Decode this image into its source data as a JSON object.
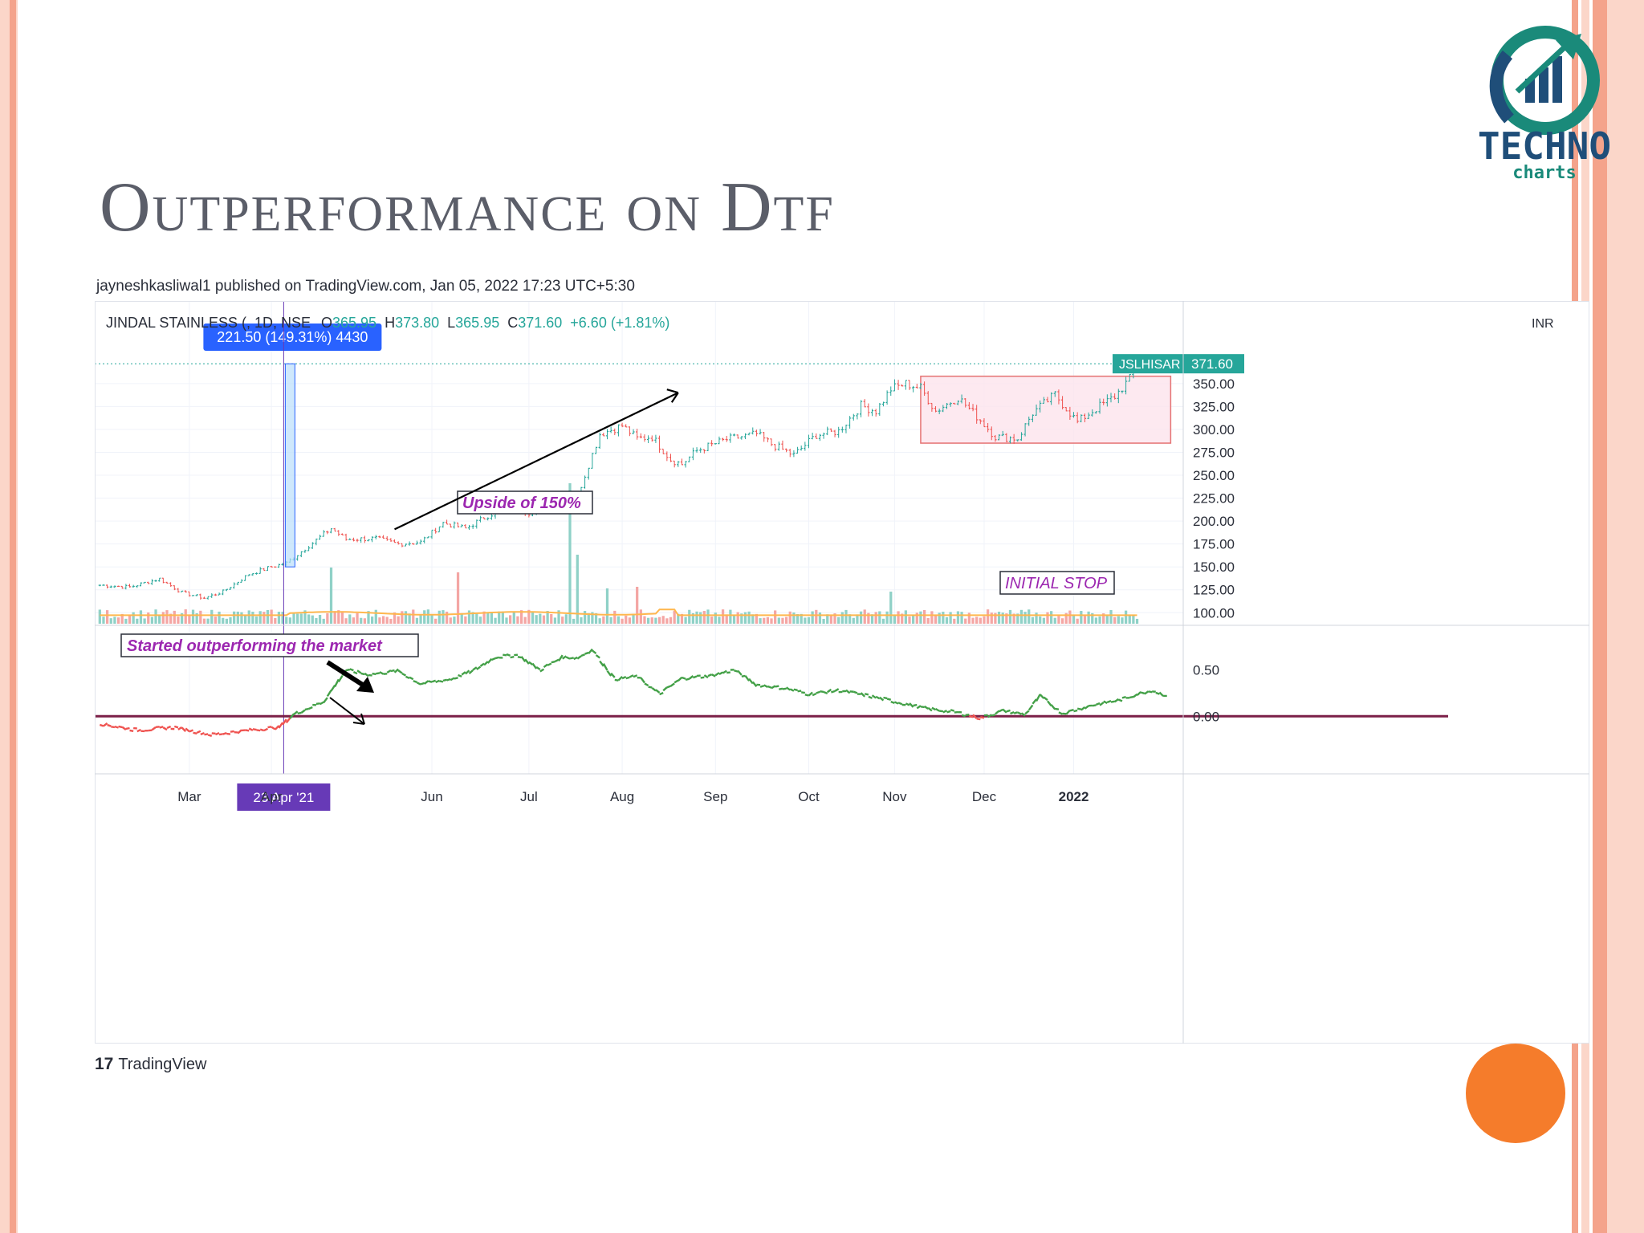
{
  "slide": {
    "title": "Outperformance on Dtf",
    "attribution": "jayneshkasliwal1 published on TradingView.com, Jan 05, 2022 17:23 UTC+5:30",
    "tv_brand": "TradingView",
    "logo_main": "TECHNO",
    "logo_sub": "charts"
  },
  "colors": {
    "stripe_dark": "#f4a38b",
    "stripe_light": "#fbd6c9",
    "title": "#5b5e69",
    "up": "#26a69a",
    "down": "#ef5350",
    "measure_blue": "#2962ff",
    "box_fill": "#fce4ec",
    "box_border": "#e57373",
    "rs_green": "#43a047",
    "rs_red": "#ef5350",
    "zero_line": "#7b1f47",
    "ma_orange": "#ffb74d",
    "annotation_purple": "#9c27b0",
    "date_badge": "#673ab7",
    "logo_blue": "#1f4e79",
    "logo_teal": "#1a8a7a",
    "orange_circle": "#f57c2b"
  },
  "chart_data": {
    "type": "candlestick",
    "symbol_line": {
      "name": "JINDAL STAINLESS (, 1D, NSE",
      "o_label": "O",
      "o_value": "365.95",
      "h_label": "H",
      "h_value": "373.80",
      "l_label": "L",
      "l_value": "365.95",
      "c_label": "C",
      "c_value": "371.60",
      "change": "+6.60 (+1.81%)"
    },
    "currency_label": "INR",
    "ylim": [
      88,
      398
    ],
    "y_ticks": [
      "350.00",
      "325.00",
      "300.00",
      "275.00",
      "250.00",
      "225.00",
      "200.00",
      "175.00",
      "150.00",
      "125.00",
      "100.00"
    ],
    "y_tick_values": [
      350,
      325,
      300,
      275,
      250,
      225,
      200,
      175,
      150,
      125,
      100
    ],
    "x_axis": [
      "Mar",
      "Apr",
      "Jun",
      "Jul",
      "Aug",
      "Sep",
      "Oct",
      "Nov",
      "Dec",
      "2022"
    ],
    "price_path": [
      [
        0,
        130
      ],
      [
        8,
        128
      ],
      [
        16,
        137
      ],
      [
        22,
        122
      ],
      [
        28,
        116
      ],
      [
        33,
        123
      ],
      [
        40,
        142
      ],
      [
        46,
        150
      ],
      [
        50,
        154
      ],
      [
        56,
        173
      ],
      [
        62,
        192
      ],
      [
        66,
        180
      ],
      [
        74,
        181
      ],
      [
        80,
        175
      ],
      [
        86,
        177
      ],
      [
        92,
        198
      ],
      [
        98,
        192
      ],
      [
        104,
        206
      ],
      [
        110,
        216
      ],
      [
        116,
        208
      ],
      [
        122,
        222
      ],
      [
        128,
        228
      ],
      [
        134,
        295
      ],
      [
        140,
        304
      ],
      [
        144,
        290
      ],
      [
        148,
        292
      ],
      [
        153,
        267
      ],
      [
        156,
        262
      ],
      [
        160,
        277
      ],
      [
        168,
        289
      ],
      [
        176,
        295
      ],
      [
        180,
        284
      ],
      [
        186,
        272
      ],
      [
        192,
        294
      ],
      [
        198,
        298
      ],
      [
        204,
        326
      ],
      [
        208,
        320
      ],
      [
        212,
        344
      ],
      [
        216,
        350
      ],
      [
        220,
        345
      ],
      [
        224,
        320
      ],
      [
        230,
        335
      ],
      [
        236,
        310
      ],
      [
        240,
        292
      ],
      [
        246,
        290
      ],
      [
        250,
        318
      ],
      [
        256,
        338
      ],
      [
        262,
        308
      ],
      [
        266,
        320
      ],
      [
        272,
        336
      ],
      [
        276,
        355
      ],
      [
        278,
        371.6
      ]
    ],
    "last_price": "371.60",
    "last_price_value": 371.6,
    "price_tag_symbol": "JSLHISAR",
    "ma_base": 28,
    "volume_spikes": [
      [
        62,
        70
      ],
      [
        96,
        64
      ],
      [
        126,
        175
      ],
      [
        128,
        86
      ],
      [
        136,
        44
      ],
      [
        144,
        46
      ],
      [
        212,
        40
      ]
    ],
    "rs_panel": {
      "ylim": [
        -0.5,
        0.8
      ],
      "y_ticks": [
        "0.50",
        "0.00"
      ],
      "y_tick_values": [
        0.5,
        0.0
      ],
      "path": [
        [
          0,
          -0.08
        ],
        [
          10,
          -0.15
        ],
        [
          20,
          -0.12
        ],
        [
          30,
          -0.2
        ],
        [
          40,
          -0.15
        ],
        [
          48,
          -0.12
        ],
        [
          52,
          0.02
        ],
        [
          60,
          0.16
        ],
        [
          66,
          0.5
        ],
        [
          72,
          0.45
        ],
        [
          80,
          0.49
        ],
        [
          86,
          0.35
        ],
        [
          94,
          0.4
        ],
        [
          100,
          0.49
        ],
        [
          106,
          0.64
        ],
        [
          112,
          0.66
        ],
        [
          118,
          0.5
        ],
        [
          124,
          0.64
        ],
        [
          128,
          0.63
        ],
        [
          132,
          0.72
        ],
        [
          138,
          0.4
        ],
        [
          144,
          0.43
        ],
        [
          150,
          0.24
        ],
        [
          156,
          0.41
        ],
        [
          164,
          0.44
        ],
        [
          170,
          0.5
        ],
        [
          176,
          0.34
        ],
        [
          184,
          0.3
        ],
        [
          190,
          0.24
        ],
        [
          198,
          0.28
        ],
        [
          206,
          0.22
        ],
        [
          214,
          0.15
        ],
        [
          222,
          0.08
        ],
        [
          230,
          0.04
        ],
        [
          236,
          -0.02
        ],
        [
          242,
          0.06
        ],
        [
          248,
          0.02
        ],
        [
          252,
          0.22
        ],
        [
          258,
          0.03
        ],
        [
          266,
          0.12
        ],
        [
          274,
          0.18
        ],
        [
          278,
          0.24
        ],
        [
          282,
          0.28
        ],
        [
          286,
          0.22
        ]
      ]
    },
    "date_badge": "23 Apr '21",
    "marker_index": 51,
    "measure_label": "221.50 (149.31%) 4430",
    "measure_from": 150,
    "measure_to": 371.6,
    "consolidation_box": {
      "start": 220,
      "end": 287,
      "low": 285,
      "high": 358
    },
    "trend_arrow": {
      "from": [
        79,
        191
      ],
      "to": [
        155,
        340
      ]
    },
    "annotations": {
      "outperform": "Started outperforming the market",
      "upside": "Upside of 150%",
      "initial_stop": "INITIAL STOP"
    }
  }
}
